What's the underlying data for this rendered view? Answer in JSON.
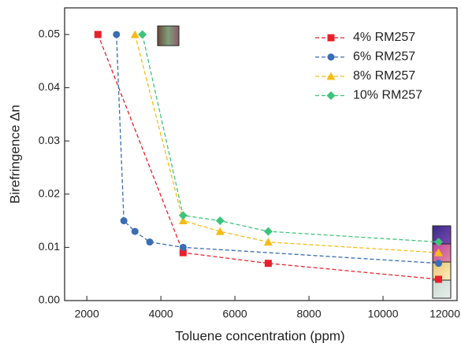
{
  "chart_data": {
    "type": "line",
    "x_label": "Toluene concentration (ppm)",
    "y_label": "Birefringence Δn",
    "xlim": [
      1400,
      12000
    ],
    "ylim": [
      0,
      0.055
    ],
    "xticks": [
      2000,
      4000,
      6000,
      8000,
      10000,
      12000
    ],
    "yticks": [
      {
        "value": 0,
        "label": "0.00"
      },
      0.01,
      0.02,
      0.03,
      0.04,
      0.05
    ],
    "legend": "upper right",
    "series": [
      {
        "name": "4% RM257",
        "color": "#e8202a",
        "marker": "square",
        "x": [
          2300,
          4600,
          6900,
          11500
        ],
        "values": [
          0.05,
          0.009,
          0.007,
          0.004
        ]
      },
      {
        "name": "6% RM257",
        "color": "#3a6db4",
        "marker": "circle",
        "x": [
          2800,
          3000,
          3300,
          3700,
          4600,
          11500
        ],
        "values": [
          0.05,
          0.015,
          0.013,
          0.011,
          0.01,
          0.007
        ]
      },
      {
        "name": "8% RM257",
        "color": "#f7bb16",
        "marker": "triangle",
        "x": [
          3300,
          4600,
          5600,
          6900,
          11500
        ],
        "values": [
          0.05,
          0.015,
          0.013,
          0.011,
          0.009
        ]
      },
      {
        "name": "10% RM257",
        "color": "#3dc47c",
        "marker": "diamond",
        "x": [
          3500,
          4600,
          5600,
          6900,
          11500
        ],
        "values": [
          0.05,
          0.016,
          0.015,
          0.013,
          0.011
        ]
      }
    ]
  }
}
